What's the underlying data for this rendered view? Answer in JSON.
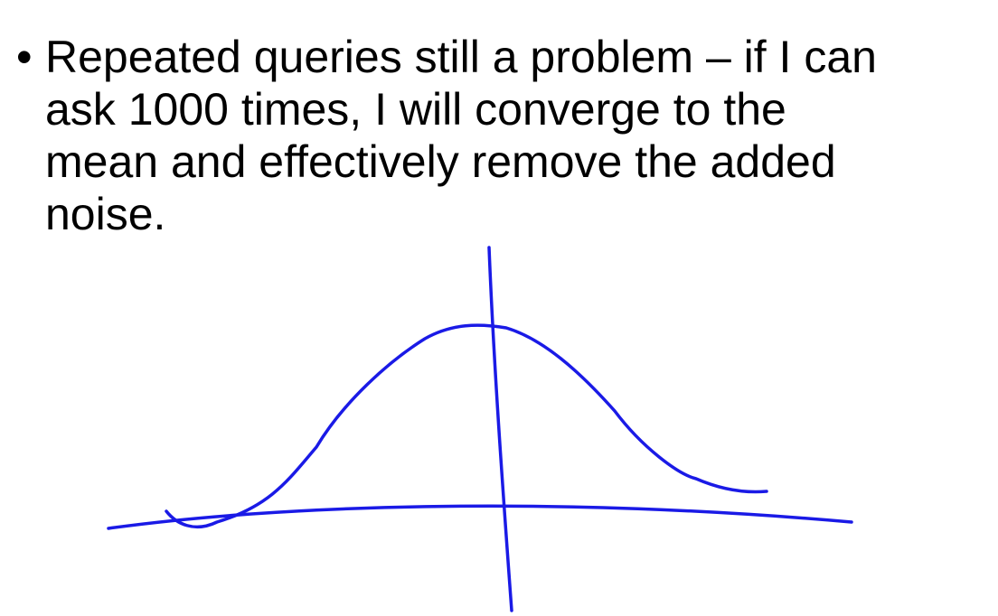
{
  "slide": {
    "bullet_char": "•",
    "bullet_lines": [
      "Repeated queries still a problem – if I can",
      "ask 1000 times, I will converge to the",
      "mean and effectively remove the added",
      "noise."
    ]
  },
  "drawing": {
    "ink_color": "#1a1ae6",
    "depicts": "hand-drawn bell curve with crossed axes"
  }
}
